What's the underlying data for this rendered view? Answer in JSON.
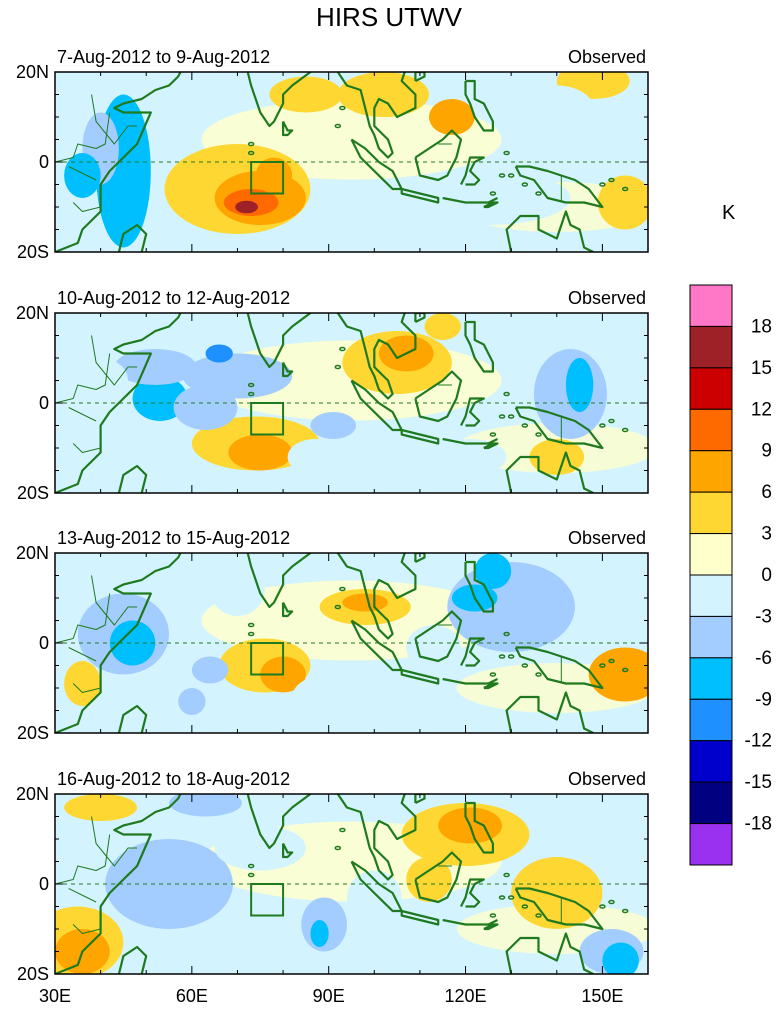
{
  "title": "HIRS UTWV",
  "unit": "K",
  "panels": [
    {
      "period": "7-Aug-2012 to 9-Aug-2012",
      "label": "Observed"
    },
    {
      "period": "10-Aug-2012 to 12-Aug-2012",
      "label": "Observed"
    },
    {
      "period": "13-Aug-2012 to 15-Aug-2012",
      "label": "Observed"
    },
    {
      "period": "16-Aug-2012 to 18-Aug-2012",
      "label": "Observed"
    }
  ],
  "lat_labels": [
    "20N",
    "0",
    "20S"
  ],
  "lon_labels": [
    "30E",
    "60E",
    "90E",
    "120E",
    "150E"
  ],
  "colorbar": {
    "ticks": [
      "18",
      "15",
      "12",
      "9",
      "6",
      "3",
      "0",
      "-3",
      "-6",
      "-9",
      "-12",
      "-15",
      "-18"
    ],
    "colors": [
      "#ff77c6",
      "#9e2128",
      "#cc0000",
      "#ff6a00",
      "#ffa500",
      "#ffd733",
      "#ffffcc",
      "#d3f4ff",
      "#a3cdff",
      "#00bfff",
      "#1e90ff",
      "#0000cd",
      "#000080",
      "#9a30f0"
    ]
  },
  "map": {
    "lon_range": [
      30,
      160
    ],
    "lat_range": [
      -20,
      20
    ],
    "box": {
      "lon": [
        73,
        80
      ],
      "lat": [
        -7,
        0
      ]
    },
    "line_color": "#1f7a1f"
  }
}
